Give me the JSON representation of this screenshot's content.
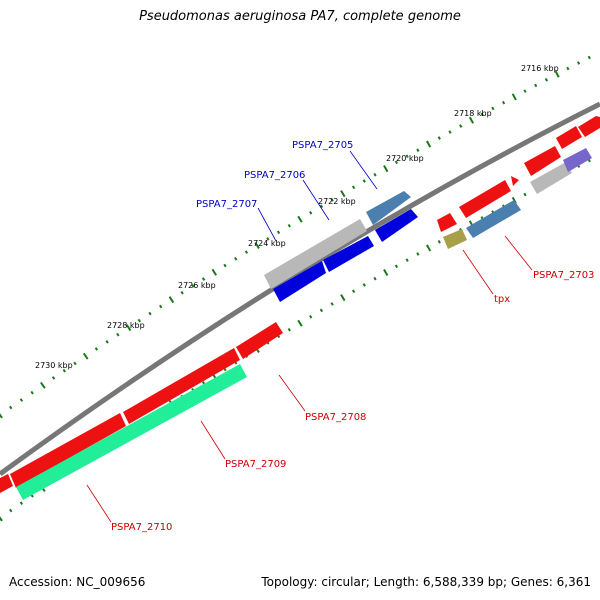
{
  "title": "Pseudomonas aeruginosa PA7, complete genome",
  "footer": {
    "accession": "Accession: NC_009656",
    "topology": "Topology: circular; Length: 6,588,339 bp; Genes: 6,361"
  },
  "ticks": [
    "2716 kbp",
    "2718 kbp",
    "2720 kbp",
    "2722 kbp",
    "2724 kbp",
    "2726 kbp",
    "2728 kbp",
    "2730 kbp"
  ],
  "gene_labels": [
    {
      "name": "PSPA7_2705",
      "color": "#0000cc"
    },
    {
      "name": "PSPA7_2706",
      "color": "#0000cc"
    },
    {
      "name": "PSPA7_2707",
      "color": "#0000cc"
    },
    {
      "name": "PSPA7_2703",
      "color": "#cc0000"
    },
    {
      "name": "tpx",
      "color": "#cc0000"
    },
    {
      "name": "PSPA7_2708",
      "color": "#cc0000"
    },
    {
      "name": "PSPA7_2709",
      "color": "#cc0000"
    },
    {
      "name": "PSPA7_2710",
      "color": "#cc0000"
    }
  ],
  "colors": {
    "backbone": "#777777",
    "tick": "#1a7a1a",
    "forward": "#ee1111",
    "reverse_blue": "#0000dd",
    "steel": "#4a7fb0",
    "grey": "#b8b8b8",
    "mint": "#22ee99",
    "olive": "#a7a049",
    "violet": "#7766cc"
  }
}
